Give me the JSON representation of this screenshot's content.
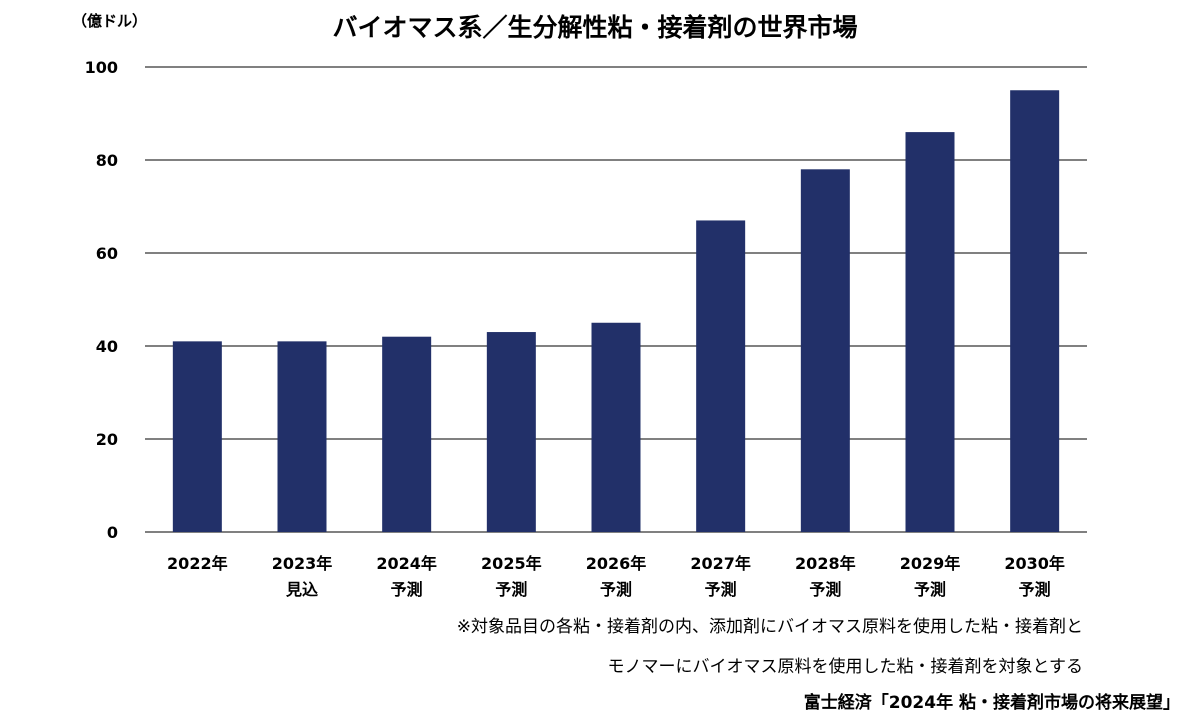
{
  "chart_data": {
    "type": "bar",
    "title": "バイオマス系／生分解性粘・接着剤の世界市場",
    "ylabel": "（億ドル）",
    "ylim": [
      0,
      100
    ],
    "yticks": [
      0,
      20,
      40,
      60,
      80,
      100
    ],
    "grid": true,
    "categories": [
      [
        "2022年"
      ],
      [
        "2023年",
        "見込"
      ],
      [
        "2024年",
        "予測"
      ],
      [
        "2025年",
        "予測"
      ],
      [
        "2026年",
        "予測"
      ],
      [
        "2027年",
        "予測"
      ],
      [
        "2028年",
        "予測"
      ],
      [
        "2029年",
        "予測"
      ],
      [
        "2030年",
        "予測"
      ]
    ],
    "values": [
      41,
      41,
      42,
      43,
      45,
      67,
      78,
      86,
      95
    ],
    "bar_color": "#223069",
    "grid_color": "#000000"
  },
  "notes": [
    "※対象品目の各粘・接着剤の内、添加剤にバイオマス原料を使用した粘・接着剤と",
    "モノマーにバイオマス原料を使用した粘・接着剤を対象とする"
  ],
  "source": "富士経済「2024年 粘・接着剤市場の将来展望」"
}
